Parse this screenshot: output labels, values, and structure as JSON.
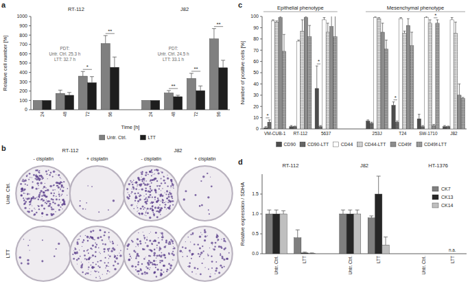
{
  "chart_data": [
    {
      "type": "bar",
      "title": "a",
      "y_label": "Relative cell number [%]",
      "x_label": "Time [h]",
      "groups": [
        {
          "name": "RT-112",
          "size": 4
        },
        {
          "name": "J82",
          "size": 4
        }
      ],
      "categories": [
        "24",
        "48",
        "72",
        "96",
        "24",
        "48",
        "72",
        "96"
      ],
      "series": [
        {
          "name": "Untr. Ctrl.",
          "color": "#808080",
          "values": [
            100,
            175,
            360,
            710,
            100,
            180,
            335,
            760
          ],
          "errors": [
            0,
            35,
            50,
            85,
            0,
            25,
            55,
            110
          ]
        },
        {
          "name": "LTT",
          "color": "#1e1e1e",
          "values": [
            100,
            155,
            290,
            455,
            100,
            140,
            205,
            450
          ],
          "errors": [
            0,
            30,
            65,
            110,
            0,
            15,
            50,
            80
          ]
        }
      ],
      "ylim": [
        0,
        1000
      ],
      "yticks": [
        0,
        100,
        200,
        300,
        400,
        500,
        600,
        700,
        800,
        900,
        1000
      ],
      "grid": false,
      "legend": "bottom",
      "annotations": [
        {
          "lines": [
            "PDT:",
            "Untr. Ctrl. 25.3 h",
            "LTT: 32.7 h"
          ],
          "category": 1
        },
        {
          "lines": [
            "PDT:",
            "Untr. Ctrl. 24.5 h",
            "LTT: 33.1 h"
          ],
          "category": 5
        }
      ],
      "significance": [
        {
          "text": "*",
          "category": 2
        },
        {
          "text": "**",
          "category": 3
        },
        {
          "text": "**",
          "category": 5
        },
        {
          "text": "**",
          "category": 6
        },
        {
          "text": "**",
          "category": 7
        }
      ]
    },
    {
      "type": "image_grid",
      "title": "b",
      "groups": [
        {
          "name": "RT-112",
          "size": 2
        },
        {
          "name": "J82",
          "size": 2
        }
      ],
      "columns": [
        "- cisplatin",
        "+ cisplatin",
        "- cisplatin",
        "+ cisplatin"
      ],
      "rows": [
        "Untr. Ctrl.",
        "LTT"
      ],
      "colony_density": [
        [
          0.7,
          0.03,
          0.8,
          0.04
        ],
        [
          0.04,
          0.45,
          0.5,
          0.3
        ]
      ]
    },
    {
      "type": "bar",
      "title": "c",
      "y_label": "Number of positive cells [%]",
      "groups": [
        {
          "name": "Epithelial phenotype",
          "size": 3
        },
        {
          "name": "Mesenchymal phenotype",
          "size": 4
        }
      ],
      "categories": [
        "VM-CUB-1",
        "RT-112",
        "5637",
        "253J",
        "T24",
        "SW-1710",
        "J82"
      ],
      "series": [
        {
          "name": "CD90",
          "color": "#4d4d4d",
          "values": [
            1,
            2,
            36,
            7,
            21,
            9,
            2
          ],
          "errors": [
            1,
            1,
            20,
            1,
            3,
            4,
            1
          ]
        },
        {
          "name": "CD90-LTT",
          "color": "#6e6e6e",
          "values": [
            6,
            2,
            2,
            5,
            6,
            2,
            2
          ],
          "errors": [
            2,
            0.5,
            1,
            1,
            1,
            1,
            0.5
          ]
        },
        {
          "name": "CD44",
          "color": "#ffffff",
          "values": [
            96,
            78,
            97,
            99,
            98,
            99,
            97
          ],
          "errors": [
            1,
            1,
            2,
            1,
            1,
            1,
            2
          ]
        },
        {
          "name": "CD44-LTT",
          "color": "#e0e0e0",
          "values": [
            95,
            87,
            86,
            98,
            85,
            94,
            85
          ],
          "errors": [
            1,
            10,
            8,
            1,
            2,
            3,
            10
          ]
        },
        {
          "name": "CD49f",
          "color": "#8c8c8c",
          "values": [
            99,
            99,
            91,
            86,
            92,
            3,
            30
          ],
          "errors": [
            1,
            1,
            15,
            8,
            6,
            1,
            10
          ]
        },
        {
          "name": "CD49f-LTT",
          "color": "#a6a6a6",
          "values": [
            69,
            82,
            82,
            71,
            74,
            94,
            27
          ],
          "errors": [
            15,
            10,
            20,
            8,
            12,
            3,
            1
          ]
        }
      ],
      "ylim": [
        0,
        100
      ],
      "yticks": [
        0,
        10,
        20,
        30,
        40,
        50,
        60,
        70,
        80,
        90,
        100
      ],
      "grid": false,
      "legend": "bottom",
      "significance": [
        {
          "text": "*",
          "category": 0,
          "series": 0
        },
        {
          "text": "*",
          "category": 2,
          "series": 0
        },
        {
          "text": "*",
          "category": 4,
          "series": 0
        },
        {
          "text": "*",
          "category": 5,
          "series": 4
        }
      ]
    },
    {
      "type": "bar",
      "title": "d",
      "y_label": "Relative expression / SDHA",
      "groups": [
        {
          "name": "RT-112",
          "size": 2
        },
        {
          "name": "J82",
          "size": 2
        },
        {
          "name": "HT-1376",
          "size": 2
        }
      ],
      "categories": [
        "Untr. Ctrl.",
        "LTT",
        "Untr. Ctrl.",
        "LTT",
        "Untr. Ctrl.",
        "LTT"
      ],
      "series": [
        {
          "name": "CK7",
          "color": "#7f7f7f",
          "values": [
            1,
            0.4,
            1,
            0.9,
            0,
            0
          ],
          "errors": [
            0.1,
            0.2,
            0.1,
            0.05,
            0,
            0
          ]
        },
        {
          "name": "CK13",
          "color": "#262626",
          "values": [
            1,
            0.02,
            1,
            1.5,
            0,
            null
          ],
          "errors": [
            0.1,
            0.02,
            0.1,
            0.45,
            0,
            null
          ]
        },
        {
          "name": "CK14",
          "color": "#bfbfbf",
          "values": [
            1,
            0.01,
            1,
            0.22,
            0,
            0
          ],
          "errors": [
            0.08,
            0.01,
            0.1,
            0.2,
            0,
            0
          ]
        }
      ],
      "ylim": [
        0,
        2
      ],
      "yticks": [
        {
          "value": 0,
          "label": "0.0"
        },
        0.5,
        {
          "value": 1,
          "label": "1.0"
        },
        1.5
      ],
      "grid": false,
      "legend": "top-right",
      "annotations": [
        {
          "text": "n.a.",
          "category": 5,
          "series": 1
        }
      ]
    }
  ]
}
